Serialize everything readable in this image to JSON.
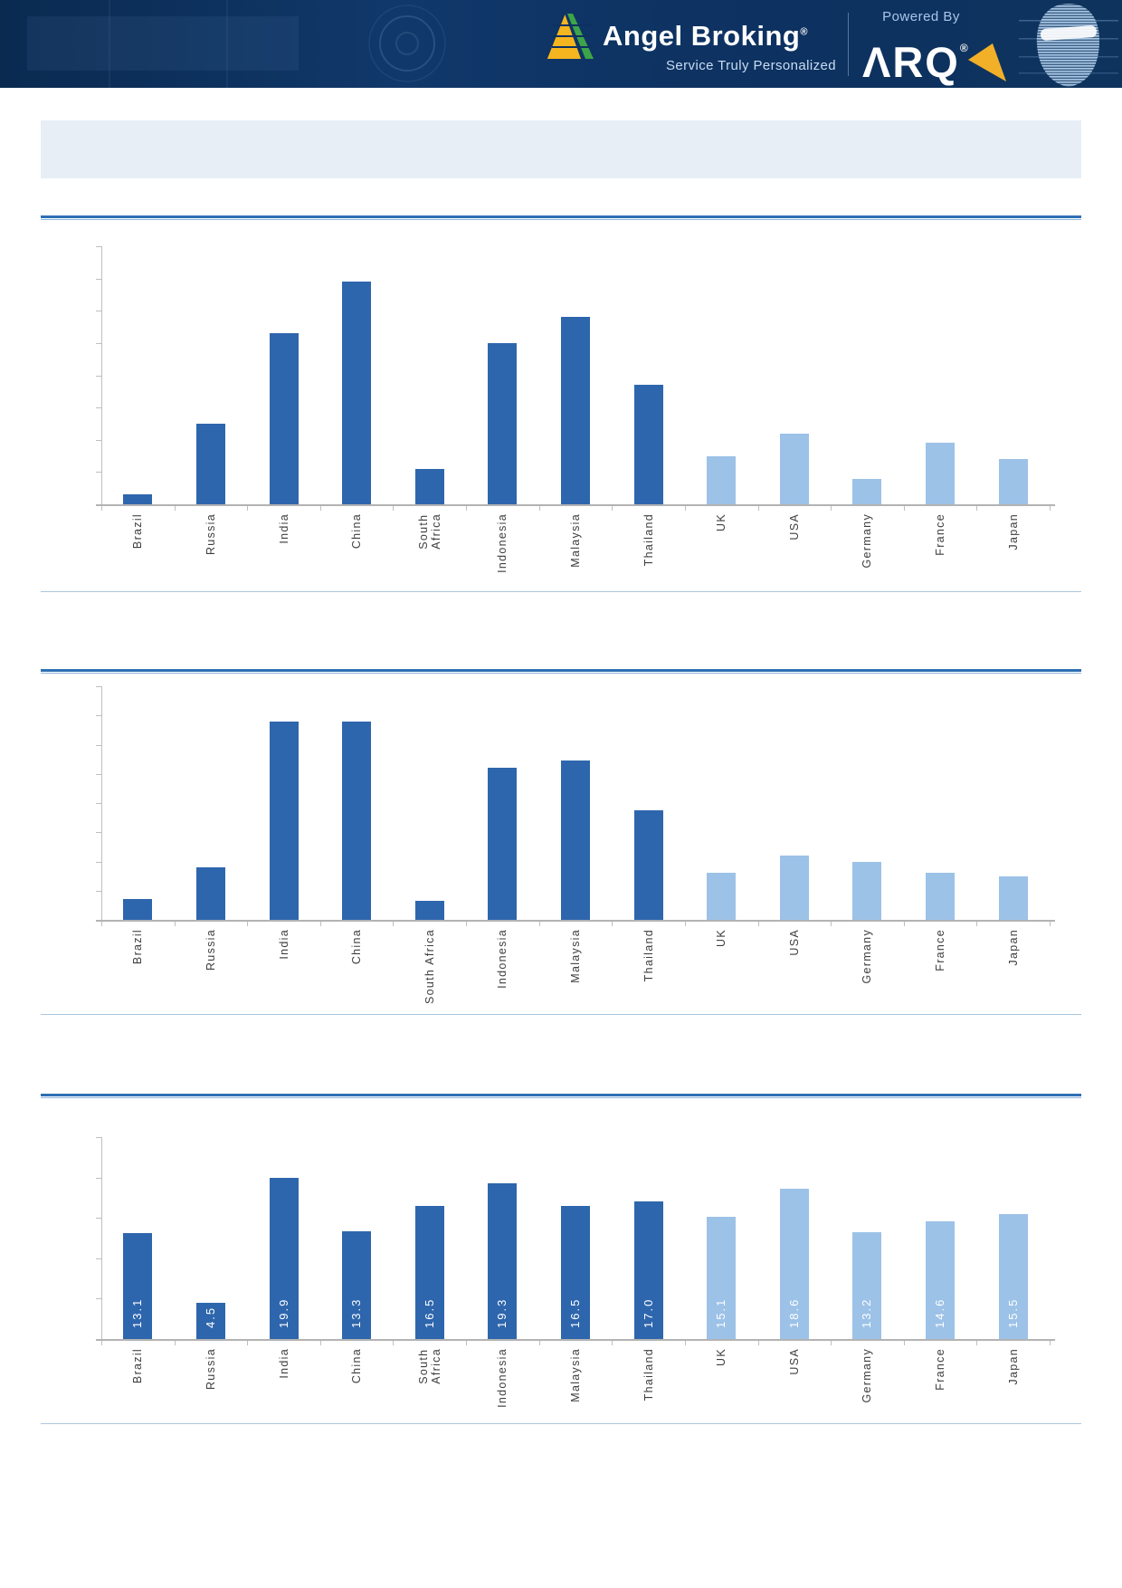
{
  "header": {
    "brand": "Angel Broking",
    "reg_mark": "®",
    "tagline": "Service Truly Personalized",
    "powered_by": "Powered By",
    "product_logo_text": "ΛRQ",
    "product_reg_mark": "®",
    "colors": {
      "header_bg": "#0d3160",
      "arq_yellow": "#f2b028",
      "logo_gold": "#f5b51f",
      "logo_green": "#3da449",
      "head_hologram_blue": "#9fc2e6"
    }
  },
  "banner": {
    "title": ""
  },
  "colors": {
    "emerging_bar": "#2e66ad",
    "developed_bar": "#9cc2e7",
    "section_rule": "#2e6fb3",
    "thin_rule": "#a9c7e1",
    "axis_gray": "#bfbfbf",
    "label_text": "#3e3e3e",
    "value_label_text": "#ffffff",
    "banner_bg": "#e8eef6"
  },
  "chart_data": [
    {
      "type": "bar",
      "title": "",
      "categories": [
        "Brazil",
        "Russia",
        "India",
        "China",
        "South Africa",
        "Indonesia",
        "Malaysia",
        "Thailand",
        "UK",
        "USA",
        "Germany",
        "France",
        "Japan"
      ],
      "values": [
        0.3,
        2.5,
        5.3,
        6.9,
        1.1,
        5.0,
        5.8,
        3.7,
        1.5,
        2.2,
        0.8,
        1.9,
        1.4
      ],
      "ylim": [
        0,
        8
      ],
      "ytick_step": 1,
      "ytick_labels_visible": false,
      "grid": false,
      "legend": "none",
      "value_labels": null,
      "color_groups": [
        "emerging",
        "emerging",
        "emerging",
        "emerging",
        "emerging",
        "emerging",
        "emerging",
        "emerging",
        "developed",
        "developed",
        "developed",
        "developed",
        "developed"
      ],
      "wrap_long_labels": true
    },
    {
      "type": "bar",
      "title": "",
      "categories": [
        "Brazil",
        "Russia",
        "India",
        "China",
        "South Africa",
        "Indonesia",
        "Malaysia",
        "Thailand",
        "UK",
        "USA",
        "Germany",
        "France",
        "Japan"
      ],
      "values": [
        0.7,
        1.8,
        6.8,
        6.8,
        0.65,
        5.2,
        5.45,
        3.75,
        1.6,
        2.2,
        2.0,
        1.6,
        1.5
      ],
      "ylim": [
        0,
        8
      ],
      "ytick_step": 1,
      "ytick_labels_visible": false,
      "grid": false,
      "legend": "none",
      "value_labels": null,
      "color_groups": [
        "emerging",
        "emerging",
        "emerging",
        "emerging",
        "emerging",
        "emerging",
        "emerging",
        "emerging",
        "developed",
        "developed",
        "developed",
        "developed",
        "developed"
      ],
      "wrap_long_labels": false
    },
    {
      "type": "bar",
      "title": "",
      "categories": [
        "Brazil",
        "Russia",
        "India",
        "China",
        "South Africa",
        "Indonesia",
        "Malaysia",
        "Thailand",
        "UK",
        "USA",
        "Germany",
        "France",
        "Japan"
      ],
      "values": [
        13.1,
        4.5,
        19.9,
        13.3,
        16.5,
        19.3,
        16.5,
        17.0,
        15.1,
        18.6,
        13.2,
        14.6,
        15.5
      ],
      "value_labels": [
        "13.1",
        "4.5",
        "19.9",
        "13.3",
        "16.5",
        "19.3",
        "16.5",
        "17.0",
        "15.1",
        "18.6",
        "13.2",
        "14.6",
        "15.5"
      ],
      "ylim": [
        0,
        25
      ],
      "ytick_step": 5,
      "ytick_labels_visible": false,
      "grid": false,
      "legend": "none",
      "color_groups": [
        "emerging",
        "emerging",
        "emerging",
        "emerging",
        "emerging",
        "emerging",
        "emerging",
        "emerging",
        "developed",
        "developed",
        "developed",
        "developed",
        "developed"
      ],
      "wrap_long_labels": true
    }
  ]
}
